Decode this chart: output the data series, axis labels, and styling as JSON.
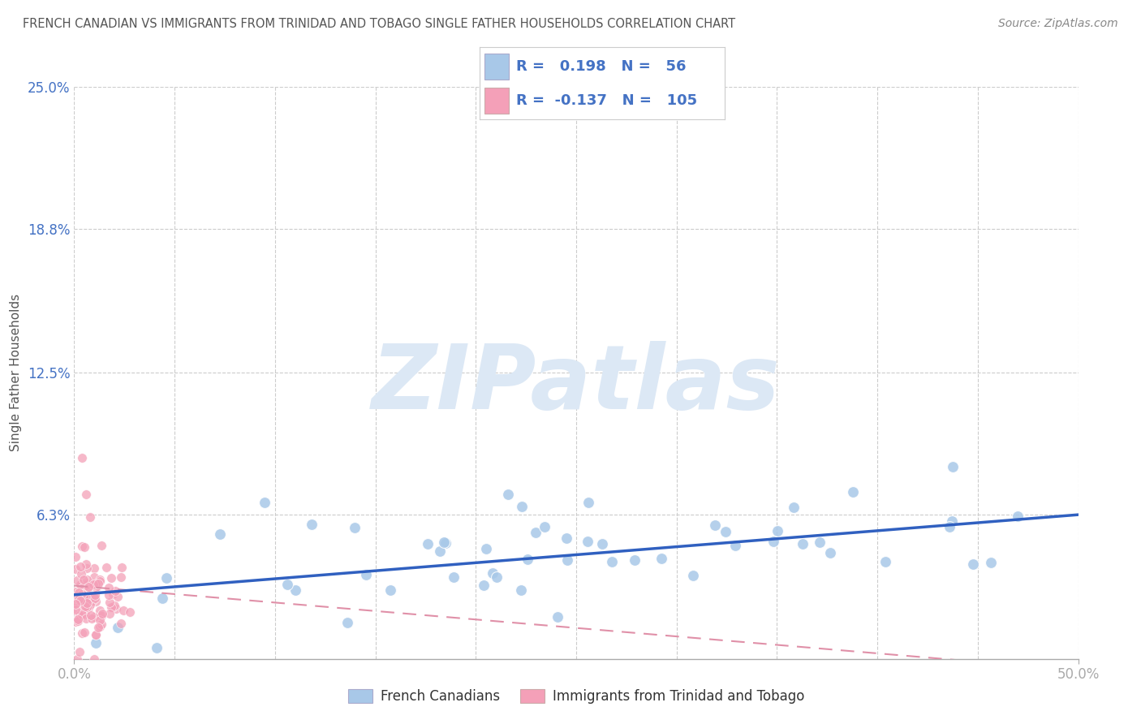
{
  "title": "FRENCH CANADIAN VS IMMIGRANTS FROM TRINIDAD AND TOBAGO SINGLE FATHER HOUSEHOLDS CORRELATION CHART",
  "source": "Source: ZipAtlas.com",
  "ylabel": "Single Father Households",
  "xlim": [
    0.0,
    0.5
  ],
  "ylim": [
    0.0,
    0.25
  ],
  "x_tick_labels": [
    "0.0%",
    "50.0%"
  ],
  "x_ticks": [
    0.0,
    0.5
  ],
  "y_tick_labels": [
    "6.3%",
    "12.5%",
    "18.8%",
    "25.0%"
  ],
  "y_ticks": [
    0.063,
    0.125,
    0.188,
    0.25
  ],
  "blue_R": 0.198,
  "blue_N": 56,
  "pink_R": -0.137,
  "pink_N": 105,
  "blue_scatter_color": "#a8c8e8",
  "pink_scatter_color": "#f4a0b8",
  "blue_line_color": "#3060c0",
  "pink_line_color": "#e090a8",
  "legend_label_blue": "French Canadians",
  "legend_label_pink": "Immigrants from Trinidad and Tobago",
  "watermark": "ZIPatlas",
  "watermark_color": "#dce8f5",
  "background_color": "#ffffff",
  "grid_color": "#cccccc",
  "title_color": "#555555",
  "axis_label_color": "#4472c4",
  "right_label_color": "#4472c4",
  "blue_line_start_y": 0.028,
  "blue_line_end_y": 0.063,
  "pink_line_start_y": 0.032,
  "pink_line_end_y": -0.005
}
